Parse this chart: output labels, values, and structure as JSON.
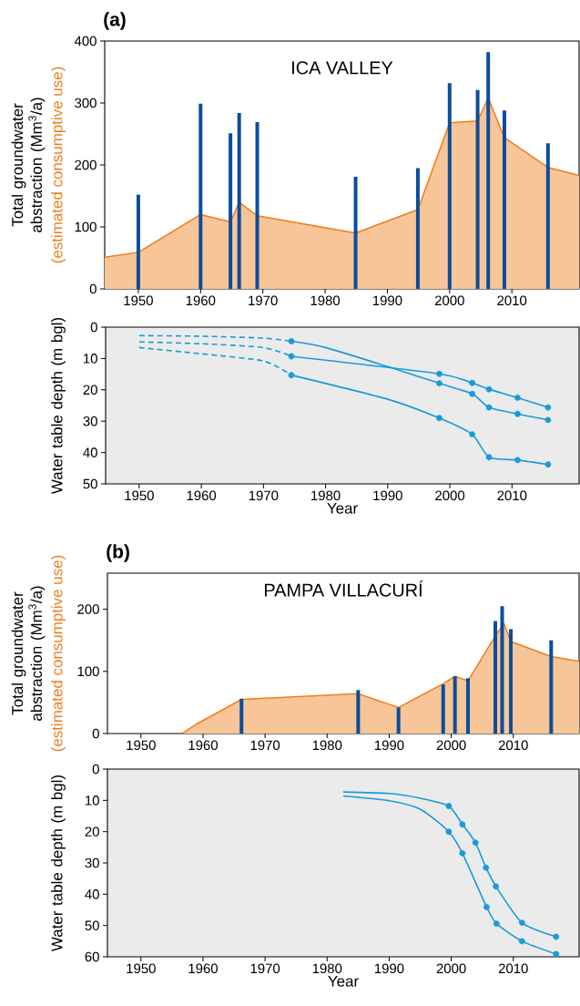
{
  "chart_data": [
    {
      "type": "bar",
      "title": "ICA VALLEY",
      "ylabel": "Total groundwater abstraction (Mm$^{3}$/a)",
      "annotations": [
        "(a)",
        "(estimated consumptive use)"
      ],
      "xlim": [
        1944.6,
        2020.8
      ],
      "xticks": [
        1950,
        1960,
        1970,
        1980,
        1990,
        2000,
        2010
      ],
      "ylim": [
        0,
        400
      ],
      "yticks": [
        0,
        100,
        200,
        300,
        400
      ],
      "series": [
        {
          "type": "area",
          "color": "#ee7d1a",
          "x": [
            1944.6,
            1950,
            1960,
            1964.8,
            1966.2,
            1969.1,
            1984.9,
            1994.9,
            2000,
            2004.5,
            2006.2,
            2008.8,
            2015.8,
            2020.8
          ],
          "values": [
            51,
            59,
            120,
            108,
            140,
            118,
            90,
            128,
            268,
            271,
            308,
            244,
            196,
            183
          ]
        },
        {
          "color": "#0b4d9c",
          "x": [
            1950,
            1960,
            1964.8,
            1966.2,
            1969.1,
            1984.9,
            1994.9,
            2000,
            2004.5,
            2006.2,
            2008.8,
            2015.8
          ],
          "values": [
            152,
            299,
            251,
            284,
            269,
            181,
            195,
            332,
            321,
            382,
            288,
            235
          ]
        }
      ]
    },
    {
      "type": "line",
      "ylabel": "Water table depth (m bgl)",
      "xlabel": "Year",
      "xlim": [
        1944.6,
        2020.8
      ],
      "xticks": [
        1950,
        1960,
        1970,
        1980,
        1990,
        2000,
        2010
      ],
      "ylim": [
        50,
        0
      ],
      "yticks": [
        0,
        10,
        20,
        30,
        40,
        50
      ],
      "series": [
        {
          "line_style": "dashed",
          "color": "#1a9ad9",
          "x": [
            1950,
            1960,
            1970,
            1974.5
          ],
          "values": [
            2.7,
            2.9,
            3.5,
            4.5
          ]
        },
        {
          "line_style": "dashed",
          "color": "#1a9ad9",
          "x": [
            1950,
            1960,
            1970,
            1974.5
          ],
          "values": [
            4.7,
            5.3,
            6.5,
            9.3
          ]
        },
        {
          "line_style": "dashed",
          "color": "#1a9ad9",
          "x": [
            1950,
            1960,
            1970,
            1974.5
          ],
          "values": [
            6.5,
            8.5,
            10.8,
            15.3
          ]
        },
        {
          "line_style": "solid",
          "color": "#1a9ad9",
          "x": [
            1974.5,
            1980,
            1990,
            1998.3,
            2003.6,
            2006.3,
            2010.9,
            2015.8
          ],
          "values": [
            4.5,
            6.5,
            12.6,
            17.9,
            21.3,
            25.6,
            27.7,
            29.6
          ]
        },
        {
          "line_style": "solid",
          "color": "#1a9ad9",
          "x": [
            1974.5,
            1998.3,
            2003.6,
            2006.3,
            2010.9,
            2015.8
          ],
          "values": [
            9.3,
            14.9,
            17.8,
            19.8,
            22.5,
            25.6
          ]
        },
        {
          "line_style": "solid",
          "color": "#1a9ad9",
          "x": [
            1974.5,
            1990,
            1998.3,
            2003.6,
            2006.3,
            2010.9,
            2015.8
          ],
          "values": [
            15.3,
            23,
            29,
            34.2,
            41.5,
            42.4,
            43.8
          ]
        },
        {
          "type": "scatter",
          "marker": "circle",
          "color": "#1a9ad9",
          "x": [
            1974.5,
            1998.3,
            2003.6,
            2006.3,
            2010.9,
            2015.8
          ],
          "values": [
            4.5,
            17.9,
            21.3,
            25.6,
            27.7,
            29.6
          ]
        },
        {
          "type": "scatter",
          "marker": "circle",
          "color": "#1a9ad9",
          "x": [
            1974.5,
            1998.3,
            2003.6,
            2006.3,
            2010.9,
            2015.8
          ],
          "values": [
            9.3,
            14.9,
            17.8,
            19.8,
            22.5,
            25.6
          ]
        },
        {
          "type": "scatter",
          "marker": "circle",
          "color": "#1a9ad9",
          "x": [
            1974.5,
            1998.3,
            2003.6,
            2006.3,
            2010.9,
            2015.8
          ],
          "values": [
            15.3,
            29,
            34.2,
            41.5,
            42.4,
            43.8
          ]
        }
      ]
    },
    {
      "type": "bar",
      "title": "PAMPA VILLACURÍ",
      "ylabel": "Total groundwater abstraction (Mm$^{3}$/a)",
      "annotations": [
        "(b)",
        "(estimated consumptive use)"
      ],
      "xlim": [
        1944.6,
        2020.6
      ],
      "xticks": [
        1950,
        1960,
        1970,
        1980,
        1990,
        2000,
        2010
      ],
      "ylim": [
        0,
        258
      ],
      "yticks": [
        0,
        100,
        200
      ],
      "series": [
        {
          "type": "area",
          "color": "#ee7d1a",
          "x": [
            1956.6,
            1958.9,
            1966.2,
            1985.0,
            1991.5,
            1998.7,
            2000.6,
            2002.7,
            2007.1,
            2008.5,
            2009.6,
            2016.1,
            2020.6
          ],
          "values": [
            0,
            15,
            55,
            64,
            42,
            80,
            92,
            85,
            157,
            177,
            148,
            124,
            116
          ]
        },
        {
          "color": "#0b4d9c",
          "x": [
            1966.2,
            1985.0,
            1991.5,
            1998.7,
            2000.6,
            2002.7,
            2007.1,
            2008.2,
            2009.6,
            2016.1
          ],
          "values": [
            56,
            70,
            42,
            79,
            92,
            89,
            181,
            205,
            168,
            150
          ]
        }
      ]
    },
    {
      "type": "line",
      "ylabel": "Water table depth (m bgl)",
      "xlabel": "Year",
      "xlim": [
        1944.6,
        2020.6
      ],
      "xticks": [
        1950,
        1960,
        1970,
        1980,
        1990,
        2000,
        2010
      ],
      "ylim": [
        60,
        0
      ],
      "yticks": [
        0,
        10,
        20,
        30,
        40,
        50,
        60
      ],
      "series": [
        {
          "line_style": "solid",
          "color": "#1a9ad9",
          "x": [
            1982.6,
            1990,
            1995,
            1999.6,
            2001.8,
            2003.9,
            2005.6,
            2007.2,
            2011.4,
            2016.9
          ],
          "values": [
            7.3,
            7.8,
            9.3,
            11.8,
            17.7,
            23.5,
            31.5,
            37.5,
            49.1,
            53.6
          ]
        },
        {
          "line_style": "solid",
          "color": "#1a9ad9",
          "x": [
            1982.6,
            1990,
            1995,
            1999.6,
            2001.8,
            2005.7,
            2007.3,
            2011.4,
            2016.9
          ],
          "values": [
            8.6,
            10.1,
            12.8,
            20.0,
            26.9,
            44.1,
            49.4,
            55,
            59.1
          ]
        },
        {
          "type": "scatter",
          "marker": "circle",
          "color": "#1a9ad9",
          "x": [
            1999.6,
            2001.8,
            2003.9,
            2005.6,
            2007.2,
            2011.4,
            2016.9
          ],
          "values": [
            11.8,
            17.7,
            23.5,
            31.5,
            37.5,
            49.1,
            53.6
          ]
        },
        {
          "type": "scatter",
          "marker": "circle",
          "color": "#1a9ad9",
          "x": [
            1999.6,
            2001.8,
            2005.7,
            2007.3,
            2011.4,
            2016.9
          ],
          "values": [
            20.0,
            26.9,
            44.1,
            49.4,
            55,
            59.1
          ]
        }
      ]
    }
  ]
}
